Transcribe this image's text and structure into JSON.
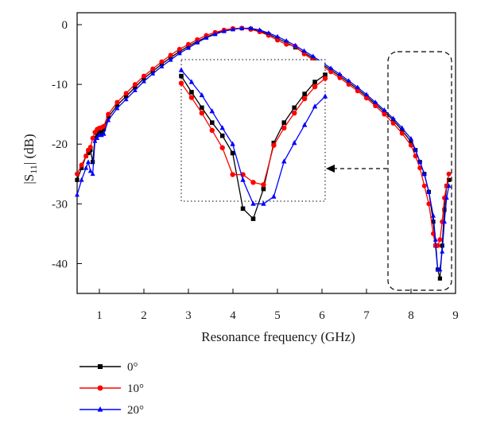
{
  "chart_data": {
    "type": "line",
    "xlabel": "Resonance frequency (GHz)",
    "ylabel": {
      "prefix": "|S",
      "sub": "11",
      "suffix": "| (dB)"
    },
    "xlim": [
      0.5,
      9.0
    ],
    "ylim": [
      -45,
      2
    ],
    "xticks": [
      1,
      2,
      3,
      4,
      5,
      6,
      7,
      8,
      9
    ],
    "yticks": [
      0,
      -10,
      -20,
      -30,
      -40
    ],
    "grid": false,
    "legend_position": "bottom-left",
    "series": [
      {
        "name": "0°",
        "color": "#000000",
        "marker": "square",
        "x": [
          0.5,
          0.6,
          0.7,
          0.75,
          0.8,
          0.85,
          0.9,
          0.95,
          1.0,
          1.05,
          1.1,
          1.2,
          1.4,
          1.6,
          1.8,
          2.0,
          2.2,
          2.4,
          2.6,
          2.8,
          3.0,
          3.2,
          3.4,
          3.6,
          3.8,
          4.0,
          4.2,
          4.4,
          4.6,
          4.8,
          5.0,
          5.2,
          5.4,
          5.6,
          5.8,
          6.0,
          6.2,
          6.4,
          6.6,
          6.8,
          7.0,
          7.2,
          7.4,
          7.6,
          7.8,
          8.0,
          8.1,
          8.2,
          8.3,
          8.4,
          8.5,
          8.55,
          8.6,
          8.65,
          8.7,
          8.75,
          8.8,
          8.85
        ],
        "y": [
          -26,
          -24,
          -22,
          -21.5,
          -21,
          -23,
          -19,
          -18.5,
          -18,
          -18,
          -17.5,
          -15.5,
          -13.5,
          -12,
          -10.5,
          -9,
          -7.8,
          -6.6,
          -5.5,
          -4.5,
          -3.6,
          -2.8,
          -2.1,
          -1.5,
          -1.0,
          -0.7,
          -0.6,
          -0.7,
          -1.1,
          -1.6,
          -2.3,
          -3.0,
          -3.8,
          -4.7,
          -5.6,
          -6.6,
          -7.6,
          -8.6,
          -9.7,
          -10.8,
          -12.0,
          -13.3,
          -14.6,
          -16.0,
          -17.7,
          -19.6,
          -21,
          -23,
          -25,
          -28,
          -33,
          -37,
          -41,
          -42.5,
          -37,
          -31,
          -27,
          -26
        ]
      },
      {
        "name": "10°",
        "color": "#ff0000",
        "marker": "circle",
        "x": [
          0.5,
          0.6,
          0.7,
          0.75,
          0.8,
          0.85,
          0.9,
          0.95,
          1.0,
          1.05,
          1.1,
          1.2,
          1.4,
          1.6,
          1.8,
          2.0,
          2.2,
          2.4,
          2.6,
          2.8,
          3.0,
          3.2,
          3.4,
          3.6,
          3.8,
          4.0,
          4.2,
          4.4,
          4.6,
          4.8,
          5.0,
          5.2,
          5.4,
          5.6,
          5.8,
          6.0,
          6.2,
          6.4,
          6.6,
          6.8,
          7.0,
          7.2,
          7.4,
          7.6,
          7.8,
          8.0,
          8.1,
          8.2,
          8.3,
          8.4,
          8.5,
          8.55,
          8.6,
          8.65,
          8.7,
          8.75,
          8.8,
          8.85
        ],
        "y": [
          -25,
          -23.5,
          -22,
          -21,
          -20.5,
          -19,
          -18,
          -17.5,
          -17.3,
          -17.2,
          -17,
          -15,
          -13,
          -11.5,
          -10,
          -8.6,
          -7.4,
          -6.2,
          -5.1,
          -4.1,
          -3.3,
          -2.5,
          -1.8,
          -1.3,
          -0.9,
          -0.65,
          -0.6,
          -0.8,
          -1.2,
          -1.8,
          -2.6,
          -3.3,
          -3.6,
          -4.9,
          -5.9,
          -6.9,
          -7.9,
          -8.9,
          -10.0,
          -11.1,
          -12.3,
          -13.6,
          -15.0,
          -16.5,
          -18.2,
          -20.2,
          -22,
          -24,
          -27,
          -30,
          -35,
          -37,
          -37,
          -36,
          -33,
          -29,
          -27,
          -25
        ]
      },
      {
        "name": "20°",
        "color": "#0000ff",
        "marker": "triangle",
        "x": [
          0.5,
          0.6,
          0.7,
          0.75,
          0.8,
          0.85,
          0.9,
          0.95,
          1.0,
          1.05,
          1.1,
          1.2,
          1.4,
          1.6,
          1.8,
          2.0,
          2.2,
          2.4,
          2.6,
          2.8,
          3.0,
          3.2,
          3.4,
          3.6,
          3.8,
          4.0,
          4.2,
          4.4,
          4.6,
          4.8,
          5.0,
          5.2,
          5.4,
          5.6,
          5.8,
          6.0,
          6.2,
          6.4,
          6.6,
          6.8,
          7.0,
          7.2,
          7.4,
          7.6,
          7.8,
          8.0,
          8.1,
          8.2,
          8.3,
          8.4,
          8.5,
          8.55,
          8.6,
          8.65,
          8.7,
          8.75,
          8.8,
          8.85
        ],
        "y": [
          -28.5,
          -26,
          -24,
          -23,
          -24.5,
          -25,
          -19.5,
          -19,
          -18.5,
          -18.5,
          -18.3,
          -16,
          -14,
          -12.5,
          -11,
          -9.5,
          -8.2,
          -7.0,
          -5.9,
          -4.8,
          -3.9,
          -3.0,
          -2.2,
          -1.6,
          -1.1,
          -0.8,
          -0.6,
          -0.6,
          -0.9,
          -1.4,
          -2.0,
          -2.7,
          -3.5,
          -4.4,
          -5.3,
          -6.3,
          -7.3,
          -8.3,
          -9.4,
          -10.5,
          -11.7,
          -13.0,
          -14.3,
          -15.7,
          -17.3,
          -19.1,
          -21,
          -23,
          -25,
          -28,
          -32,
          -36,
          -41,
          -41,
          -38,
          -33,
          -29,
          -27
        ]
      }
    ],
    "inset": {
      "x": [
        3.0,
        3.2,
        3.4,
        3.6,
        3.8,
        4.0,
        4.2,
        4.4,
        4.6,
        4.8,
        5.0,
        5.2,
        5.4,
        5.6,
        5.8
      ],
      "series": [
        {
          "name": "0°",
          "y": [
            -8.6,
            -11.3,
            -13.9,
            -16.4,
            -18.6,
            -21.5,
            -30.8,
            -32.5,
            -27.5,
            -19.8,
            -16.4,
            -13.9,
            -11.6,
            -9.6,
            -8.4
          ]
        },
        {
          "name": "10°",
          "y": [
            -9.8,
            -12.2,
            -14.8,
            -17.7,
            -20.6,
            -25.1,
            -25.1,
            -26.4,
            -26.8,
            -20.2,
            -17.3,
            -14.8,
            -12.4,
            -10.4,
            -9.0
          ]
        },
        {
          "name": "20°",
          "y": [
            -7.6,
            -9.6,
            -11.8,
            -14.5,
            -17.3,
            -20.0,
            -26.0,
            -30.0,
            -30.0,
            -28.8,
            -22.9,
            -19.8,
            -16.8,
            -13.7,
            -12.0
          ]
        }
      ]
    }
  }
}
